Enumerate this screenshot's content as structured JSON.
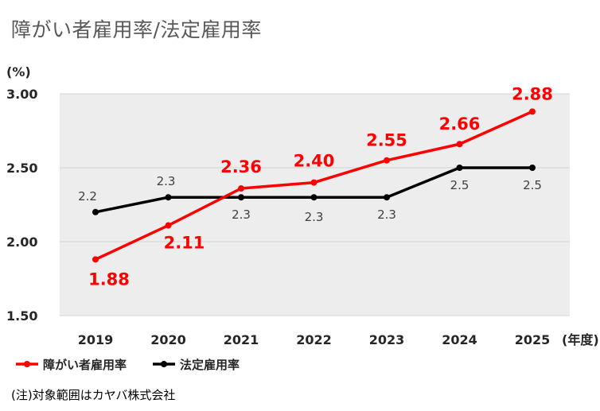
{
  "title": "障がい者雇用率/法定雇用率",
  "note": "(注)対象範囲はカヤバ株式会社",
  "chart_data": {
    "type": "line",
    "title": "障がい者雇用率/法定雇用率",
    "ylabel": "(%)",
    "xlabel": "(年度)",
    "x": [
      "2019",
      "2020",
      "2021",
      "2022",
      "2023",
      "2024",
      "2025"
    ],
    "ylim": [
      1.5,
      3.0
    ],
    "yticks": [
      "3.00",
      "2.50",
      "2.00",
      "1.50"
    ],
    "grid": true,
    "legend_position": "bottom-left",
    "series": [
      {
        "name": "障がい者雇用率",
        "color": "#ff0000",
        "values": [
          1.88,
          2.11,
          2.36,
          2.4,
          2.55,
          2.66,
          2.88
        ],
        "labels": [
          "1.88",
          "2.11",
          "2.36",
          "2.40",
          "2.55",
          "2.66",
          "2.88"
        ]
      },
      {
        "name": "法定雇用率",
        "color": "#000000",
        "values": [
          2.2,
          2.3,
          2.3,
          2.3,
          2.3,
          2.5,
          2.5
        ],
        "labels": [
          "2.2",
          "2.3",
          "2.3",
          "2.3",
          "2.3",
          "2.5",
          "2.5"
        ]
      }
    ]
  }
}
